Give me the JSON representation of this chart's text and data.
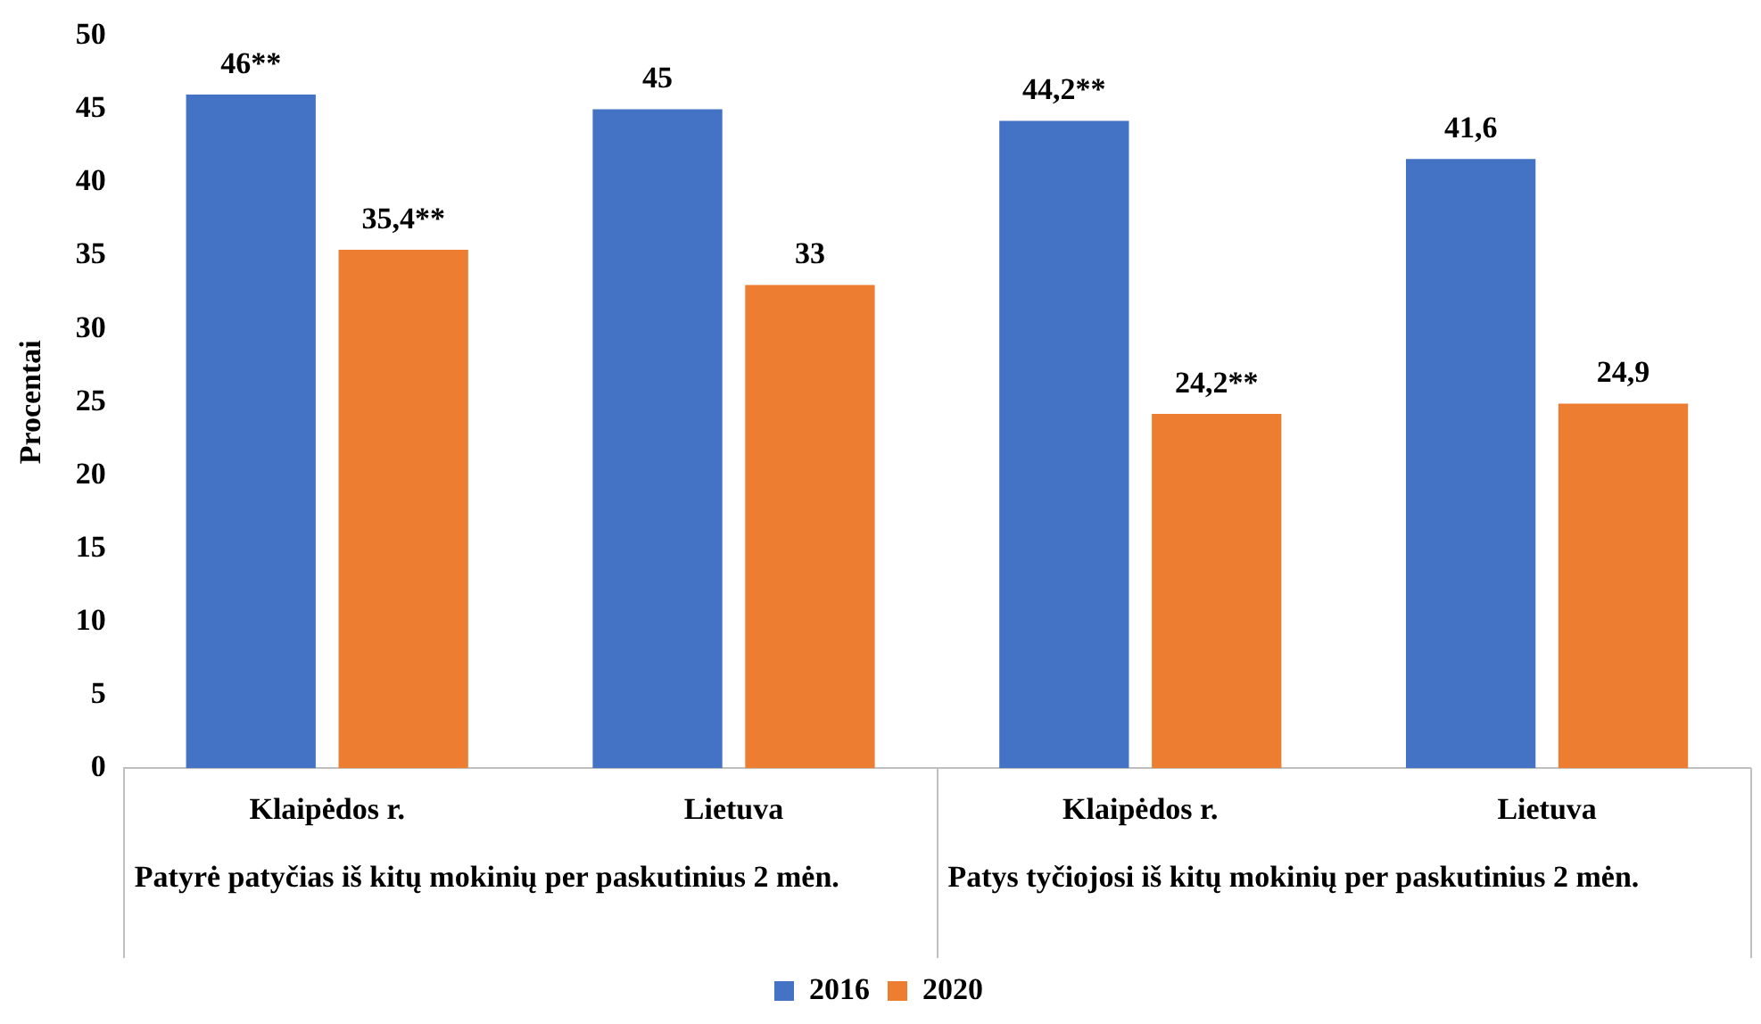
{
  "chart_data": {
    "type": "bar",
    "ylabel": "Procentai",
    "categories": [
      "Klaipėdos r.",
      "Lietuva",
      "Klaipėdos r.",
      "Lietuva"
    ],
    "series": [
      {
        "name": "2016",
        "color": "#4472c4",
        "values": [
          46,
          45,
          44.2,
          41.6
        ],
        "value_labels": [
          "46**",
          "45",
          "44,2**",
          "41,6"
        ]
      },
      {
        "name": "2020",
        "color": "#ed7d31",
        "values": [
          35.4,
          33,
          24.2,
          24.9
        ],
        "value_labels": [
          "35,4**",
          "33",
          "24,2**",
          "24,9"
        ]
      }
    ],
    "annotations": [
      "Patyrė patyčias iš kitų mokinių per paskutinius 2 mėn.",
      "Patys tyčiojosi iš kitų mokinių per paskutinius 2 mėn."
    ],
    "ylim": [
      0,
      50
    ],
    "yticks": [
      0,
      5,
      10,
      15,
      20,
      25,
      30,
      35,
      40,
      45,
      50
    ],
    "grid": false,
    "legend": "bottom"
  }
}
